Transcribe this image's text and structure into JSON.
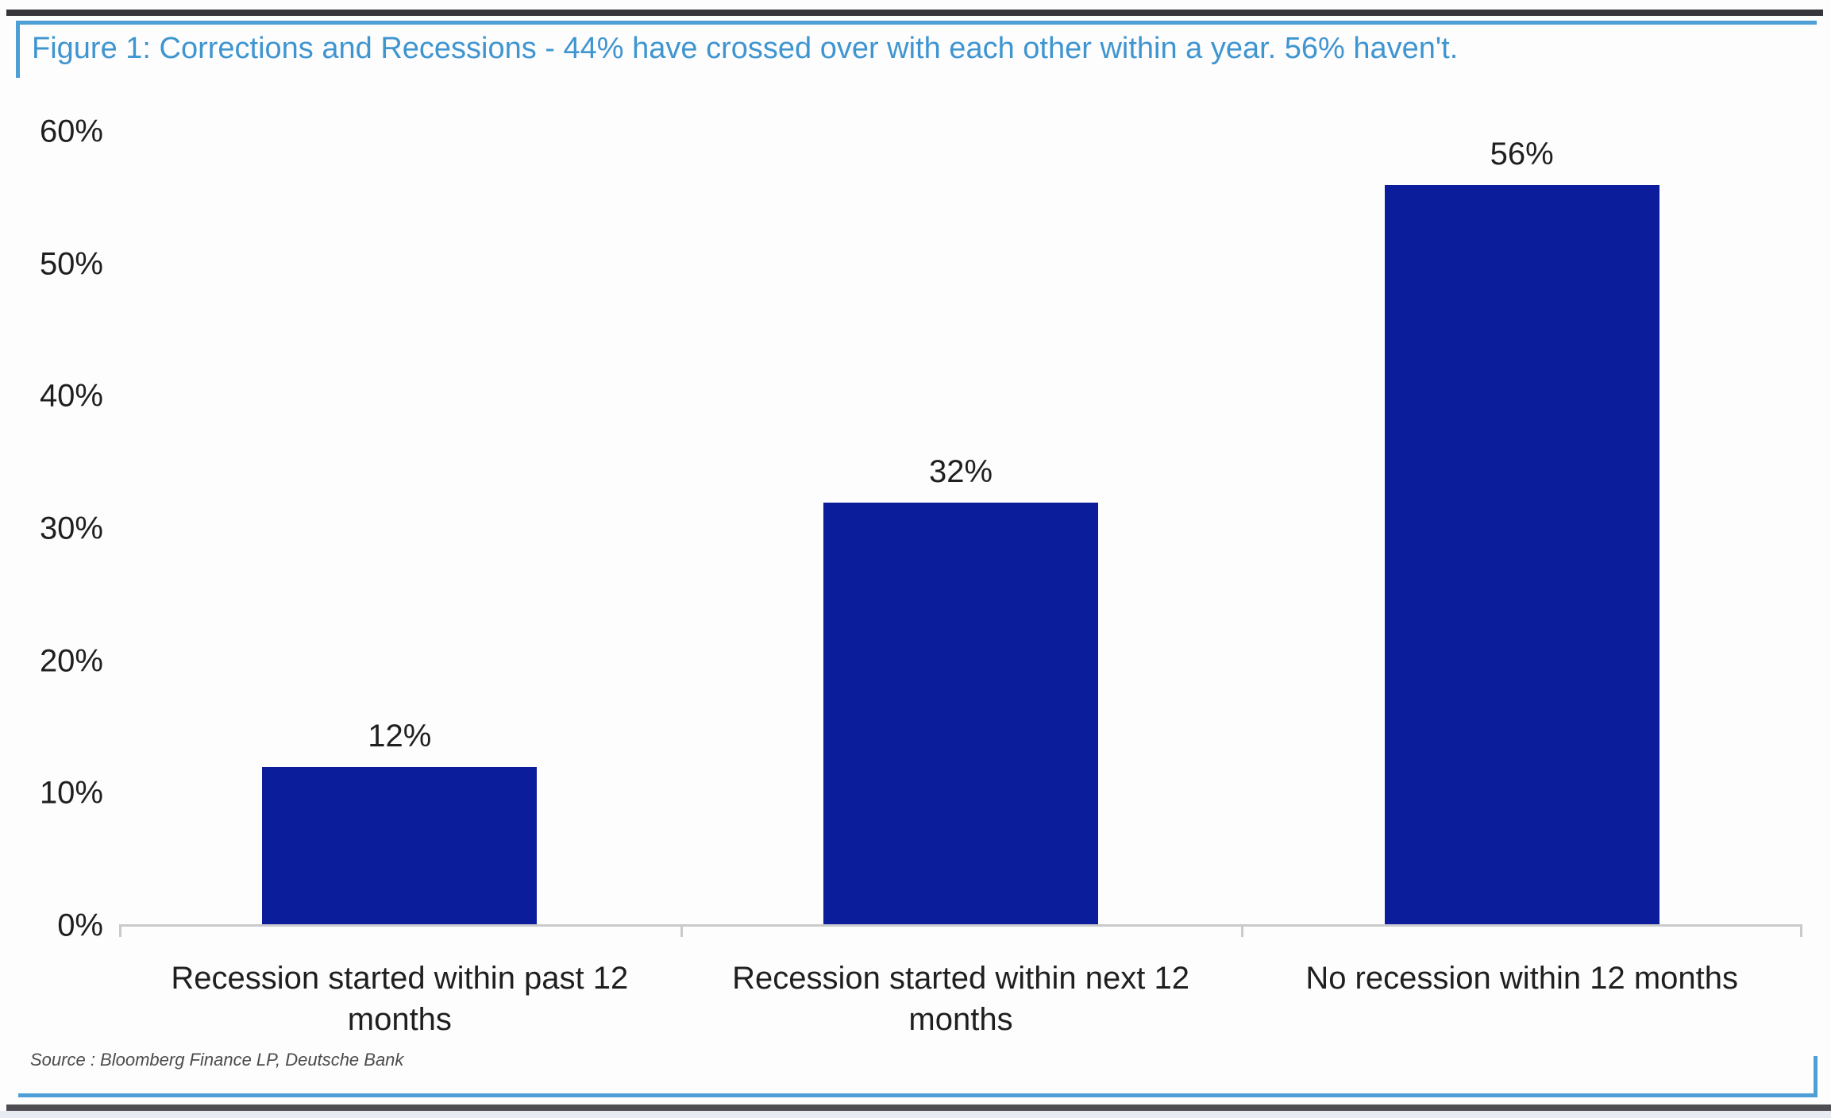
{
  "figure": {
    "title": "Figure 1: Corrections and Recessions - 44% have crossed over with each other within a year. 56% haven't.",
    "source": "Source : Bloomberg Finance LP, Deutsche Bank"
  },
  "colors": {
    "title_blue": "#3f95d0",
    "figure_border_blue": "#4d9fd6",
    "bar_navy": "#0c1d9b",
    "axis_line_gray": "#cacaca",
    "label_dark": "#1f1f1f",
    "source_gray": "#4b4b4b",
    "page_rule_dark": "#37373b"
  },
  "chart_data": {
    "type": "bar",
    "title": "Figure 1: Corrections and Recessions - 44% have crossed over with each other within a year. 56% haven't.",
    "categories": [
      "Recession started within past 12 months",
      "Recession started within next 12 months",
      "No recession within 12 months"
    ],
    "values": [
      12,
      32,
      56
    ],
    "value_labels": [
      "12%",
      "32%",
      "56%"
    ],
    "bar_color": "#0c1d9b",
    "xlabel": "",
    "ylabel": "",
    "ylim": [
      0,
      60
    ],
    "y_tick_values": [
      0,
      10,
      20,
      30,
      40,
      50,
      60
    ],
    "y_tick_labels": [
      "0%",
      "10%",
      "20%",
      "30%",
      "40%",
      "50%",
      "60%"
    ],
    "grid": false,
    "legend_position": "none",
    "source": "Source : Bloomberg Finance LP, Deutsche Bank"
  }
}
